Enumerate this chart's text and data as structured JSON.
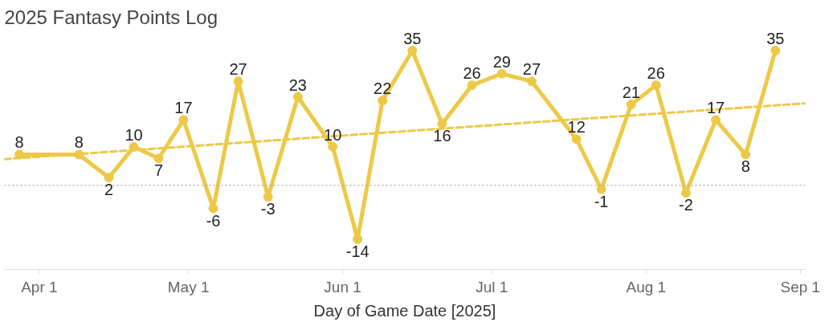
{
  "chart_data": {
    "type": "line",
    "title": "2025 Fantasy Points Log",
    "xlabel": "Day of Game Date [2025]",
    "x": [
      "2025-03-28",
      "2025-04-09",
      "2025-04-15",
      "2025-04-20",
      "2025-04-25",
      "2025-04-30",
      "2025-05-06",
      "2025-05-11",
      "2025-05-17",
      "2025-05-23",
      "2025-05-30",
      "2025-06-04",
      "2025-06-09",
      "2025-06-15",
      "2025-06-21",
      "2025-06-27",
      "2025-07-03",
      "2025-07-09",
      "2025-07-18",
      "2025-07-23",
      "2025-07-29",
      "2025-08-03",
      "2025-08-09",
      "2025-08-15",
      "2025-08-21",
      "2025-08-27"
    ],
    "series": [
      {
        "color": "#edc948",
        "values": [
          8,
          8,
          2,
          10,
          7,
          17,
          -6,
          27,
          -3,
          23,
          10,
          -14,
          22,
          35,
          16,
          26,
          29,
          27,
          12,
          -1,
          21,
          26,
          -2,
          17,
          8,
          35
        ],
        "marker": "circle",
        "line_style": "solid",
        "data_labels": true
      },
      {
        "type": "line",
        "color": "#edc948",
        "x": [
          "2025-03-25",
          "2025-09-02"
        ],
        "values": [
          6.8,
          21.3
        ],
        "line_style": "dashed",
        "marker": "none"
      }
    ],
    "xlim": [
      "2025-03-25",
      "2025-09-02"
    ],
    "xticks": [
      {
        "value": "2025-04-01",
        "label": "Apr 1"
      },
      {
        "value": "2025-05-01",
        "label": "May 1"
      },
      {
        "value": "2025-06-01",
        "label": "Jun 1"
      },
      {
        "value": "2025-07-01",
        "label": "Jul 1"
      },
      {
        "value": "2025-08-01",
        "label": "Aug 1"
      },
      {
        "value": "2025-09-01",
        "label": "Sep 1"
      }
    ],
    "tick_labels": "x",
    "ref_lines": [
      {
        "axis": "y",
        "value": 0,
        "color": "#aaaaaa",
        "line_style": "dotted"
      }
    ]
  }
}
